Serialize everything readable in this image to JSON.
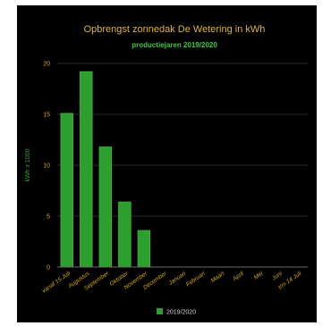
{
  "chart_data": {
    "type": "bar",
    "title": "Opbrengst zonnedak De Wetering in kWh",
    "subtitle": "productiejaren 2019/2020",
    "ylabel": "kWh x 1000",
    "categories": [
      "vanaf 15 Juli",
      "Augustus",
      "September",
      "Oktober",
      "November",
      "December",
      "Januari",
      "Februari",
      "Maart",
      "April",
      "Mei",
      "Juni",
      "t/m 14 Juli"
    ],
    "series": [
      {
        "name": "2019/2020",
        "values": [
          15.1,
          19.2,
          11.8,
          6.4,
          3.6,
          null,
          null,
          null,
          null,
          null,
          null,
          null,
          null
        ]
      }
    ],
    "ylim": [
      0,
      20
    ],
    "yticks": [
      0,
      5,
      10,
      15,
      20
    ],
    "grid": true,
    "legend_position": "bottom",
    "colors": {
      "bar": "#2e9e2e",
      "bar_stroke": "#46c046",
      "title": "#e0b43a",
      "subtitle": "#49c449",
      "tick_labels": "#d8a820",
      "ylabel": "#3f9a3f",
      "grid": "#2c2c2c",
      "axis": "#6a6a6a",
      "background": "#000000"
    }
  }
}
